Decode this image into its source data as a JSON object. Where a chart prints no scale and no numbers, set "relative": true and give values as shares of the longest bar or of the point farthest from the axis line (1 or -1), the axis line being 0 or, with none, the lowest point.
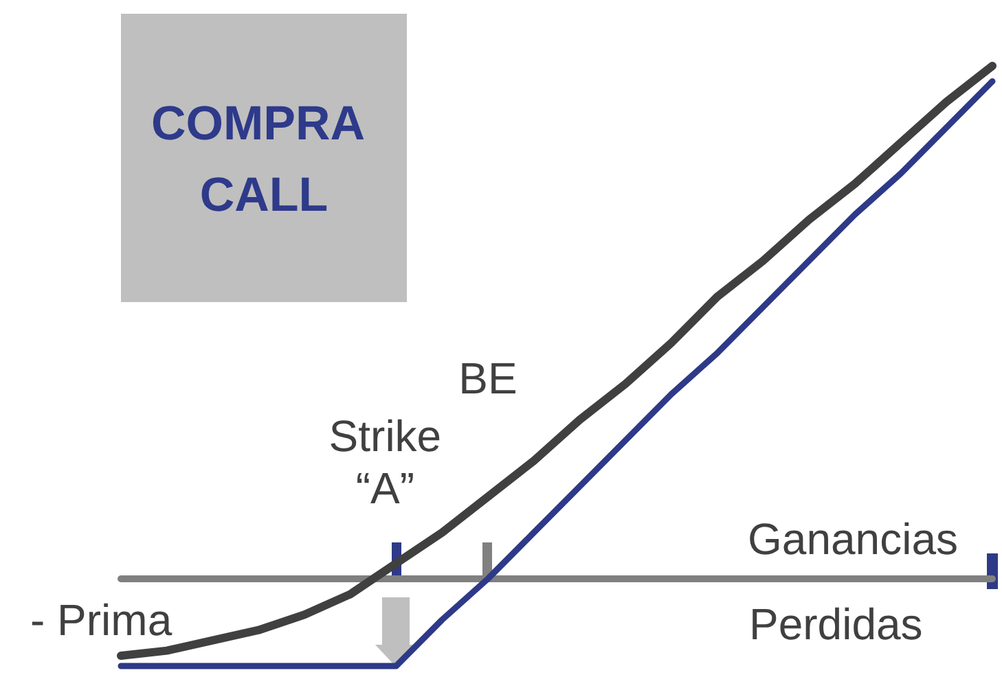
{
  "chart_data": {
    "type": "line",
    "title": "COMPRA CALL",
    "relative": true,
    "marker": "none",
    "line_style": "solid",
    "categories": [
      null,
      null,
      null,
      null,
      null,
      null,
      null,
      null,
      null,
      null,
      null,
      null,
      null,
      null,
      null,
      null,
      null,
      null,
      null,
      null
    ],
    "series": [
      {
        "color": "#404040",
        "values": [
          -0.15,
          -0.14,
          -0.12,
          -0.1,
          -0.07,
          -0.03,
          0.03,
          0.09,
          0.16,
          0.23,
          0.31,
          0.38,
          0.46,
          0.55,
          0.62,
          0.7,
          0.77,
          0.85,
          0.93,
          1
        ]
      },
      {
        "color": "#2e3a87",
        "values": [
          -0.17,
          -0.17,
          -0.17,
          -0.17,
          -0.17,
          -0.17,
          -0.17,
          -0.08,
          0,
          0.09,
          0.18,
          0.27,
          0.36,
          0.44,
          0.53,
          0.62,
          0.71,
          0.79,
          0.88,
          0.97
        ]
      }
    ],
    "annotations": [
      "Strike\n“A”",
      "BE",
      "Ganancias",
      "Perdidas",
      "- Prima"
    ]
  }
}
